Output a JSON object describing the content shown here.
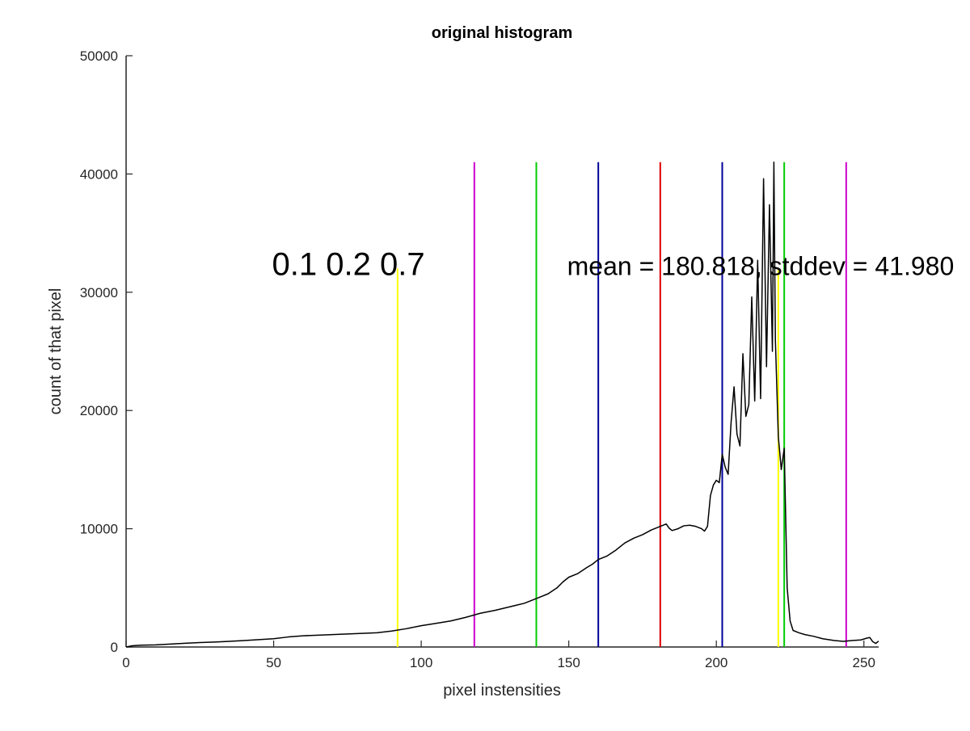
{
  "chart_data": {
    "type": "line",
    "title": "original histogram",
    "xlabel": "pixel instensities",
    "ylabel": "count of that pixel",
    "xlim": [
      0,
      255
    ],
    "ylim": [
      0,
      50000
    ],
    "xticks": [
      0,
      50,
      100,
      150,
      200,
      250
    ],
    "yticks": [
      0,
      10000,
      20000,
      30000,
      40000,
      50000
    ],
    "grid": false,
    "series": [
      {
        "color": "#000000",
        "points": [
          [
            0,
            0
          ],
          [
            2,
            100
          ],
          [
            5,
            150
          ],
          [
            10,
            180
          ],
          [
            15,
            250
          ],
          [
            20,
            320
          ],
          [
            25,
            380
          ],
          [
            30,
            420
          ],
          [
            35,
            480
          ],
          [
            40,
            550
          ],
          [
            45,
            620
          ],
          [
            50,
            700
          ],
          [
            55,
            850
          ],
          [
            60,
            950
          ],
          [
            65,
            1000
          ],
          [
            70,
            1050
          ],
          [
            75,
            1100
          ],
          [
            80,
            1150
          ],
          [
            85,
            1200
          ],
          [
            90,
            1350
          ],
          [
            95,
            1550
          ],
          [
            100,
            1800
          ],
          [
            105,
            2000
          ],
          [
            110,
            2200
          ],
          [
            115,
            2500
          ],
          [
            120,
            2850
          ],
          [
            125,
            3100
          ],
          [
            130,
            3400
          ],
          [
            135,
            3700
          ],
          [
            140,
            4200
          ],
          [
            143,
            4500
          ],
          [
            146,
            5000
          ],
          [
            148,
            5500
          ],
          [
            150,
            5900
          ],
          [
            153,
            6200
          ],
          [
            156,
            6700
          ],
          [
            158,
            7000
          ],
          [
            160,
            7400
          ],
          [
            163,
            7700
          ],
          [
            166,
            8200
          ],
          [
            169,
            8800
          ],
          [
            172,
            9200
          ],
          [
            175,
            9500
          ],
          [
            178,
            9900
          ],
          [
            181,
            10200
          ],
          [
            183,
            10400
          ],
          [
            184,
            10050
          ],
          [
            185,
            9850
          ],
          [
            187,
            10000
          ],
          [
            189,
            10250
          ],
          [
            191,
            10300
          ],
          [
            193,
            10200
          ],
          [
            195,
            10000
          ],
          [
            196,
            9800
          ],
          [
            197,
            10200
          ],
          [
            198,
            12800
          ],
          [
            199,
            13700
          ],
          [
            200,
            14100
          ],
          [
            201,
            13900
          ],
          [
            202,
            16300
          ],
          [
            203,
            15200
          ],
          [
            204,
            14600
          ],
          [
            205,
            19000
          ],
          [
            206,
            22000
          ],
          [
            207,
            18000
          ],
          [
            208,
            17000
          ],
          [
            209,
            24800
          ],
          [
            210,
            19500
          ],
          [
            211,
            20500
          ],
          [
            212,
            29600
          ],
          [
            213,
            20800
          ],
          [
            214,
            32700
          ],
          [
            215,
            21000
          ],
          [
            216,
            39600
          ],
          [
            217,
            23700
          ],
          [
            218,
            37400
          ],
          [
            219,
            25000
          ],
          [
            219.5,
            41000
          ],
          [
            220,
            26000
          ],
          [
            221,
            17800
          ],
          [
            222,
            15000
          ],
          [
            223,
            16800
          ],
          [
            224,
            5000
          ],
          [
            225,
            2200
          ],
          [
            226,
            1400
          ],
          [
            228,
            1200
          ],
          [
            230,
            1050
          ],
          [
            233,
            900
          ],
          [
            236,
            700
          ],
          [
            240,
            550
          ],
          [
            243,
            480
          ],
          [
            246,
            550
          ],
          [
            249,
            600
          ],
          [
            251,
            750
          ],
          [
            252,
            800
          ],
          [
            253,
            450
          ],
          [
            254,
            300
          ],
          [
            255,
            500
          ]
        ]
      }
    ],
    "vertical_lines": [
      {
        "x": 92,
        "color": "#ffff00",
        "y_top": 32000
      },
      {
        "x": 118,
        "color": "#cc00cc",
        "y_top": 41000
      },
      {
        "x": 139,
        "color": "#00cc00",
        "y_top": 41000
      },
      {
        "x": 160,
        "color": "#000099",
        "y_top": 41000
      },
      {
        "x": 181,
        "color": "#dd0000",
        "y_top": 41000
      },
      {
        "x": 202,
        "color": "#000099",
        "y_top": 41000
      },
      {
        "x": 221,
        "color": "#ffff00",
        "y_top": 32000
      },
      {
        "x": 223,
        "color": "#00cc00",
        "y_top": 41000
      },
      {
        "x": 244,
        "color": "#cc00cc",
        "y_top": 41000
      }
    ],
    "annotations": [
      {
        "text": "0.1 0.2 0.7",
        "x": 50,
        "y": 32000,
        "style": "big"
      },
      {
        "text": "mean = 180.818, stddev = 41.980",
        "x": 150,
        "y": 32000,
        "style": "mid"
      }
    ]
  }
}
